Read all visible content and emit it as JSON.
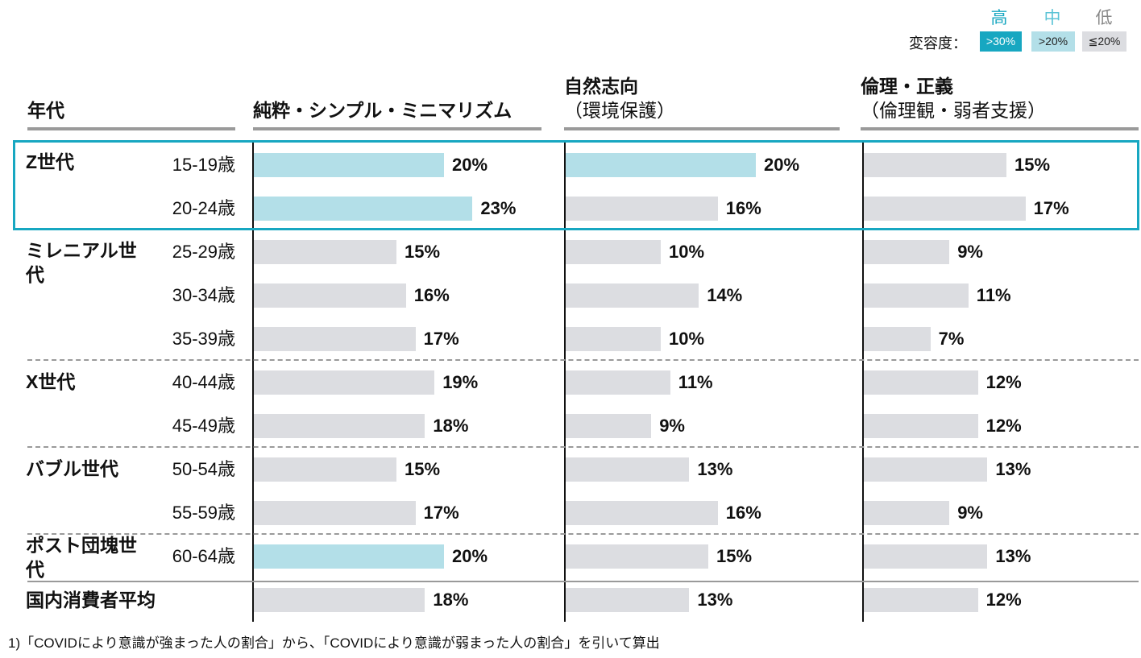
{
  "legend": {
    "prefix": "変容度：",
    "levels": [
      {
        "head": "高",
        "label": ">30%",
        "fill": "#17a7c1",
        "text_color": "#ffffff",
        "head_color": "#17a7c1"
      },
      {
        "head": "中",
        "label": ">20%",
        "fill": "#b3dfe8",
        "text_color": "#222222",
        "head_color": "#5cc3d6"
      },
      {
        "head": "低",
        "label": "≦20%",
        "fill": "#dcdde1",
        "text_color": "#222222",
        "head_color": "#888888"
      }
    ]
  },
  "header": {
    "age_col": "年代",
    "columns": [
      {
        "title": "純粋・シンプル・ミニマリズム",
        "sub": ""
      },
      {
        "title": "自然志向",
        "sub": "（環境保護）"
      },
      {
        "title": "倫理・正義",
        "sub": "（倫理観・弱者支援）"
      }
    ]
  },
  "groups": [
    {
      "name": "Z世代"
    },
    {
      "name": "ミレニアル世代"
    },
    {
      "name": "X世代"
    },
    {
      "name": "バブル世代"
    },
    {
      "name": "ポスト団塊世代"
    },
    {
      "name": "国内消費者平均"
    }
  ],
  "colors": {
    "mid": "#b3dfe8",
    "low": "#dcdde1",
    "highlight": "#17a7c1"
  },
  "chart_data": {
    "type": "bar",
    "orientation": "horizontal",
    "unit": "%",
    "categories": [
      "15-19歳",
      "20-24歳",
      "25-29歳",
      "30-34歳",
      "35-39歳",
      "40-44歳",
      "45-49歳",
      "50-54歳",
      "55-59歳",
      "60-64歳",
      "国内消費者平均"
    ],
    "series": [
      {
        "name": "純粋・シンプル・ミニマリズム",
        "values": [
          20,
          23,
          15,
          16,
          17,
          19,
          18,
          15,
          17,
          20,
          18
        ],
        "levels": [
          "mid",
          "mid",
          "low",
          "low",
          "low",
          "low",
          "low",
          "low",
          "low",
          "mid",
          "low"
        ]
      },
      {
        "name": "自然志向（環境保護）",
        "values": [
          20,
          16,
          10,
          14,
          10,
          11,
          9,
          13,
          16,
          15,
          13
        ],
        "levels": [
          "mid",
          "low",
          "low",
          "low",
          "low",
          "low",
          "low",
          "low",
          "low",
          "low",
          "low"
        ]
      },
      {
        "name": "倫理・正義（倫理観・弱者支援）",
        "values": [
          15,
          17,
          9,
          11,
          7,
          12,
          12,
          13,
          9,
          13,
          12
        ],
        "levels": [
          "low",
          "low",
          "low",
          "low",
          "low",
          "low",
          "low",
          "low",
          "low",
          "low",
          "low"
        ]
      }
    ]
  },
  "footnote": "1)「COVIDにより意識が強まった人の割合」から、「COVIDにより意識が弱まった人の割合」を引いて算出"
}
